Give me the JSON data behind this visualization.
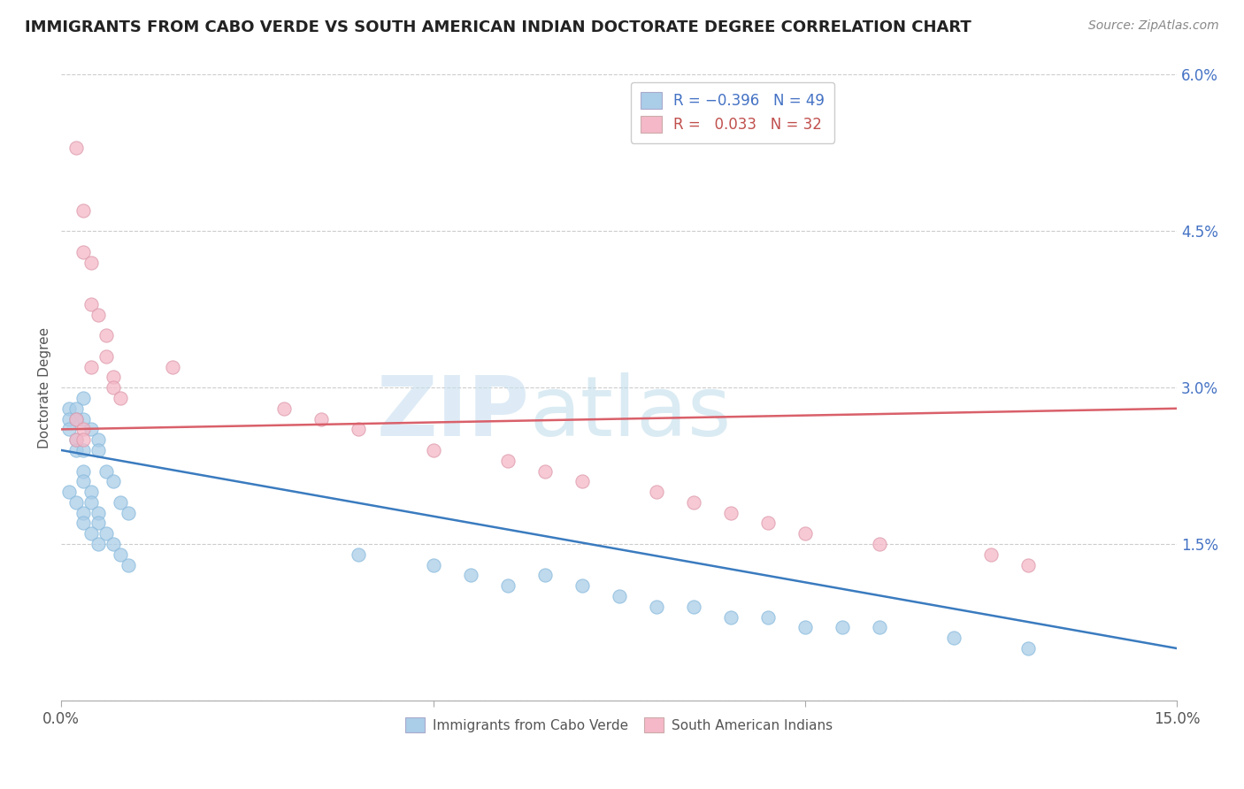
{
  "title": "IMMIGRANTS FROM CABO VERDE VS SOUTH AMERICAN INDIAN DOCTORATE DEGREE CORRELATION CHART",
  "source": "Source: ZipAtlas.com",
  "ylabel": "Doctorate Degree",
  "xlim": [
    0.0,
    0.15
  ],
  "ylim": [
    0.0,
    0.06
  ],
  "blue_R": -0.396,
  "blue_N": 49,
  "pink_R": 0.033,
  "pink_N": 32,
  "blue_color": "#aacde8",
  "pink_color": "#f4b8c8",
  "blue_line_color": "#3a7bbf",
  "pink_line_color": "#d9606a",
  "legend_blue_label": "Immigrants from Cabo Verde",
  "legend_pink_label": "South American Indians",
  "blue_line_x0": 0.0,
  "blue_line_y0": 0.024,
  "blue_line_x1": 0.15,
  "blue_line_y1": 0.005,
  "pink_line_x0": 0.0,
  "pink_line_y0": 0.026,
  "pink_line_x1": 0.15,
  "pink_line_y1": 0.028,
  "blue_points_x": [
    0.001,
    0.003,
    0.003,
    0.004,
    0.005,
    0.005,
    0.006,
    0.007,
    0.008,
    0.009,
    0.001,
    0.001,
    0.002,
    0.002,
    0.002,
    0.002,
    0.003,
    0.003,
    0.003,
    0.004,
    0.004,
    0.005,
    0.005,
    0.006,
    0.007,
    0.008,
    0.009,
    0.001,
    0.002,
    0.003,
    0.003,
    0.004,
    0.005,
    0.04,
    0.05,
    0.055,
    0.06,
    0.065,
    0.07,
    0.075,
    0.08,
    0.085,
    0.09,
    0.095,
    0.1,
    0.105,
    0.11,
    0.12,
    0.13
  ],
  "blue_points_y": [
    0.028,
    0.029,
    0.027,
    0.026,
    0.025,
    0.024,
    0.022,
    0.021,
    0.019,
    0.018,
    0.027,
    0.026,
    0.028,
    0.027,
    0.025,
    0.024,
    0.024,
    0.022,
    0.021,
    0.02,
    0.019,
    0.018,
    0.017,
    0.016,
    0.015,
    0.014,
    0.013,
    0.02,
    0.019,
    0.018,
    0.017,
    0.016,
    0.015,
    0.014,
    0.013,
    0.012,
    0.011,
    0.012,
    0.011,
    0.01,
    0.009,
    0.009,
    0.008,
    0.008,
    0.007,
    0.007,
    0.007,
    0.006,
    0.005
  ],
  "pink_points_x": [
    0.002,
    0.003,
    0.003,
    0.004,
    0.004,
    0.005,
    0.006,
    0.006,
    0.007,
    0.007,
    0.008,
    0.002,
    0.002,
    0.003,
    0.003,
    0.004,
    0.015,
    0.03,
    0.035,
    0.04,
    0.05,
    0.06,
    0.065,
    0.07,
    0.08,
    0.085,
    0.09,
    0.095,
    0.1,
    0.11,
    0.125,
    0.13
  ],
  "pink_points_y": [
    0.053,
    0.047,
    0.043,
    0.042,
    0.038,
    0.037,
    0.035,
    0.033,
    0.031,
    0.03,
    0.029,
    0.027,
    0.025,
    0.026,
    0.025,
    0.032,
    0.032,
    0.028,
    0.027,
    0.026,
    0.024,
    0.023,
    0.022,
    0.021,
    0.02,
    0.019,
    0.018,
    0.017,
    0.016,
    0.015,
    0.014,
    0.013
  ]
}
